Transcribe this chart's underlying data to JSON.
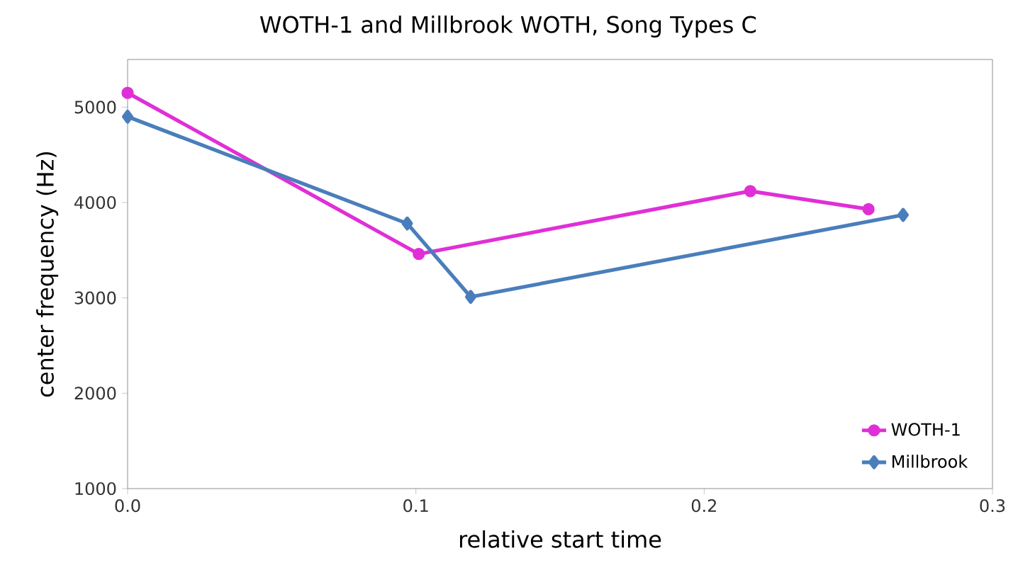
{
  "chart_data": {
    "type": "line",
    "title": "WOTH-1  and Millbrook WOTH, Song Types C",
    "xlabel": "relative start time",
    "ylabel": "center frequency (Hz)",
    "xlim": [
      0,
      0.3
    ],
    "xticks": [
      {
        "value": 0,
        "label": "0.0"
      },
      {
        "value": 0.1,
        "label": "0.1"
      },
      {
        "value": 0.2,
        "label": "0.2"
      },
      {
        "value": 0.3,
        "label": "0.3"
      }
    ],
    "ylim": [
      1000,
      5500
    ],
    "yticks": [
      1000,
      2000,
      3000,
      4000,
      5000
    ],
    "grid": false,
    "legend": "bottom right",
    "series": [
      {
        "name": "WOTH-1",
        "color": "#e02fd6",
        "marker": "circle",
        "x": [
          0,
          0.101,
          0.216,
          0.257
        ],
        "values": [
          5150,
          3460,
          4120,
          3930
        ]
      },
      {
        "name": "Millbrook",
        "color": "#4a7ebb",
        "marker": "diamond",
        "x": [
          0,
          0.097,
          0.119,
          0.269
        ],
        "values": [
          4900,
          3780,
          3010,
          3870
        ]
      }
    ]
  }
}
